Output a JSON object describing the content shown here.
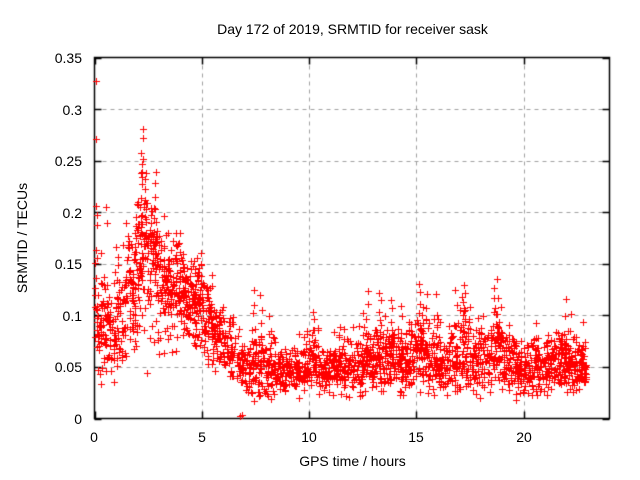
{
  "chart_data": {
    "type": "scatter",
    "title": "Day 172 of 2019, SRMTID for receiver sask",
    "xlabel": "GPS time / hours",
    "ylabel": "SRMTID / TECUs",
    "xlim": [
      0,
      24
    ],
    "ylim": [
      0,
      0.35
    ],
    "xticks": [
      {
        "v": 0,
        "label": "0"
      },
      {
        "v": 5,
        "label": "5"
      },
      {
        "v": 10,
        "label": "10"
      },
      {
        "v": 15,
        "label": "15"
      },
      {
        "v": 20,
        "label": "20"
      }
    ],
    "yticks": [
      {
        "v": 0,
        "label": "0"
      },
      {
        "v": 0.05,
        "label": "0.05"
      },
      {
        "v": 0.1,
        "label": "0.1"
      },
      {
        "v": 0.15,
        "label": "0.15"
      },
      {
        "v": 0.2,
        "label": "0.2"
      },
      {
        "v": 0.25,
        "label": "0.25"
      },
      {
        "v": 0.3,
        "label": "0.3"
      },
      {
        "v": 0.35,
        "label": "0.35"
      }
    ],
    "grid": true,
    "grid_style": "dashed",
    "legend": "none",
    "series_name": "SRMTID",
    "marker": "plus",
    "marker_size": 7,
    "marker_color": "#ff0000",
    "grid_color": "#a0a0a0",
    "border_color": "#000000",
    "background": "#ffffff",
    "x_end_of_data": 22.92,
    "seed": 172,
    "density_profile": [
      [
        0.0,
        0.5,
        55,
        0.095,
        0.028,
        0.032,
        0.205
      ],
      [
        0.5,
        1.0,
        55,
        0.088,
        0.022,
        0.04,
        0.175
      ],
      [
        1.0,
        1.5,
        55,
        0.098,
        0.028,
        0.048,
        0.185
      ],
      [
        1.5,
        2.0,
        60,
        0.125,
        0.035,
        0.05,
        0.23
      ],
      [
        2.0,
        2.5,
        65,
        0.155,
        0.04,
        0.06,
        0.27
      ],
      [
        2.5,
        3.0,
        65,
        0.15,
        0.035,
        0.07,
        0.235
      ],
      [
        3.0,
        3.5,
        65,
        0.132,
        0.03,
        0.06,
        0.205
      ],
      [
        3.5,
        4.0,
        65,
        0.122,
        0.026,
        0.06,
        0.185
      ],
      [
        4.0,
        4.5,
        70,
        0.117,
        0.022,
        0.07,
        0.168
      ],
      [
        4.5,
        5.0,
        70,
        0.112,
        0.022,
        0.06,
        0.162
      ],
      [
        5.0,
        5.5,
        60,
        0.096,
        0.02,
        0.05,
        0.15
      ],
      [
        5.5,
        6.0,
        55,
        0.081,
        0.018,
        0.045,
        0.125
      ],
      [
        6.0,
        6.5,
        50,
        0.07,
        0.015,
        0.04,
        0.105
      ],
      [
        6.5,
        7.0,
        42,
        0.056,
        0.013,
        0.03,
        0.09
      ],
      [
        7.0,
        7.5,
        46,
        0.05,
        0.016,
        0.015,
        0.1
      ],
      [
        7.5,
        8.0,
        50,
        0.05,
        0.018,
        0.015,
        0.105
      ],
      [
        8.0,
        8.5,
        50,
        0.046,
        0.014,
        0.018,
        0.097
      ],
      [
        8.5,
        9.0,
        50,
        0.045,
        0.012,
        0.02,
        0.08
      ],
      [
        9.0,
        9.5,
        50,
        0.046,
        0.012,
        0.02,
        0.085
      ],
      [
        9.5,
        10.0,
        50,
        0.05,
        0.013,
        0.02,
        0.09
      ],
      [
        10.0,
        10.5,
        50,
        0.05,
        0.015,
        0.02,
        0.095
      ],
      [
        10.5,
        11.0,
        50,
        0.046,
        0.012,
        0.02,
        0.08
      ],
      [
        11.0,
        11.5,
        50,
        0.05,
        0.013,
        0.02,
        0.09
      ],
      [
        11.5,
        12.0,
        50,
        0.051,
        0.014,
        0.02,
        0.095
      ],
      [
        12.0,
        12.5,
        50,
        0.051,
        0.015,
        0.02,
        0.095
      ],
      [
        12.5,
        13.0,
        50,
        0.055,
        0.016,
        0.025,
        0.1
      ],
      [
        13.0,
        13.5,
        55,
        0.06,
        0.02,
        0.025,
        0.115
      ],
      [
        13.5,
        14.0,
        55,
        0.06,
        0.019,
        0.025,
        0.11
      ],
      [
        14.0,
        14.5,
        55,
        0.055,
        0.017,
        0.02,
        0.105
      ],
      [
        14.5,
        15.0,
        55,
        0.06,
        0.019,
        0.025,
        0.11
      ],
      [
        15.0,
        15.5,
        55,
        0.065,
        0.021,
        0.025,
        0.12
      ],
      [
        15.5,
        16.0,
        50,
        0.056,
        0.018,
        0.02,
        0.105
      ],
      [
        16.0,
        16.5,
        50,
        0.05,
        0.015,
        0.02,
        0.095
      ],
      [
        16.5,
        17.0,
        50,
        0.055,
        0.019,
        0.02,
        0.11
      ],
      [
        17.0,
        17.5,
        55,
        0.064,
        0.023,
        0.025,
        0.125
      ],
      [
        17.5,
        18.0,
        50,
        0.056,
        0.018,
        0.02,
        0.105
      ],
      [
        18.0,
        18.5,
        55,
        0.06,
        0.02,
        0.025,
        0.115
      ],
      [
        18.5,
        19.0,
        55,
        0.068,
        0.024,
        0.025,
        0.125
      ],
      [
        19.0,
        19.5,
        50,
        0.055,
        0.016,
        0.02,
        0.095
      ],
      [
        19.5,
        20.0,
        50,
        0.049,
        0.014,
        0.015,
        0.088
      ],
      [
        20.0,
        20.5,
        50,
        0.046,
        0.014,
        0.015,
        0.085
      ],
      [
        20.5,
        21.0,
        50,
        0.05,
        0.014,
        0.018,
        0.09
      ],
      [
        21.0,
        21.5,
        55,
        0.054,
        0.015,
        0.02,
        0.095
      ],
      [
        21.5,
        22.0,
        60,
        0.055,
        0.017,
        0.02,
        0.108
      ],
      [
        22.0,
        22.5,
        60,
        0.051,
        0.015,
        0.02,
        0.1
      ],
      [
        22.5,
        22.92,
        55,
        0.05,
        0.014,
        0.02,
        0.095
      ]
    ],
    "bursts": [
      [
        2.2,
        0.282,
        12,
        0.16
      ],
      [
        2.35,
        0.25,
        9,
        0.17
      ],
      [
        2.85,
        0.237,
        8,
        0.16
      ],
      [
        1.95,
        0.21,
        6,
        0.15
      ],
      [
        5.0,
        0.158,
        6,
        0.11
      ],
      [
        7.4,
        0.125,
        7,
        0.05
      ],
      [
        7.75,
        0.118,
        6,
        0.05
      ],
      [
        8.2,
        0.1,
        4,
        0.05
      ],
      [
        10.2,
        0.106,
        6,
        0.05
      ],
      [
        11.4,
        0.09,
        4,
        0.05
      ],
      [
        12.5,
        0.102,
        5,
        0.055
      ],
      [
        12.7,
        0.122,
        6,
        0.055
      ],
      [
        13.3,
        0.123,
        7,
        0.06
      ],
      [
        13.85,
        0.116,
        6,
        0.06
      ],
      [
        14.3,
        0.112,
        5,
        0.06
      ],
      [
        15.15,
        0.13,
        8,
        0.06
      ],
      [
        15.5,
        0.122,
        6,
        0.06
      ],
      [
        15.9,
        0.119,
        5,
        0.055
      ],
      [
        16.85,
        0.125,
        5,
        0.055
      ],
      [
        17.25,
        0.131,
        7,
        0.06
      ],
      [
        18.6,
        0.128,
        6,
        0.06
      ],
      [
        18.8,
        0.134,
        6,
        0.06
      ],
      [
        20.6,
        0.09,
        4,
        0.05
      ],
      [
        21.9,
        0.113,
        5,
        0.05
      ],
      [
        22.15,
        0.104,
        4,
        0.05
      ]
    ],
    "outliers": [
      [
        0.05,
        0.327
      ],
      [
        0.05,
        0.271
      ],
      [
        0.07,
        0.206
      ],
      [
        0.12,
        0.197
      ],
      [
        0.1,
        0.188
      ],
      [
        0.55,
        0.205
      ],
      [
        0.6,
        0.19
      ],
      [
        0.08,
        0.163
      ],
      [
        0.1,
        0.156
      ],
      [
        1.45,
        0.19
      ],
      [
        6.8,
        0.002
      ],
      [
        6.87,
        0.003
      ],
      [
        0.3,
        0.033
      ],
      [
        0.9,
        0.035
      ],
      [
        2.45,
        0.044
      ]
    ]
  }
}
